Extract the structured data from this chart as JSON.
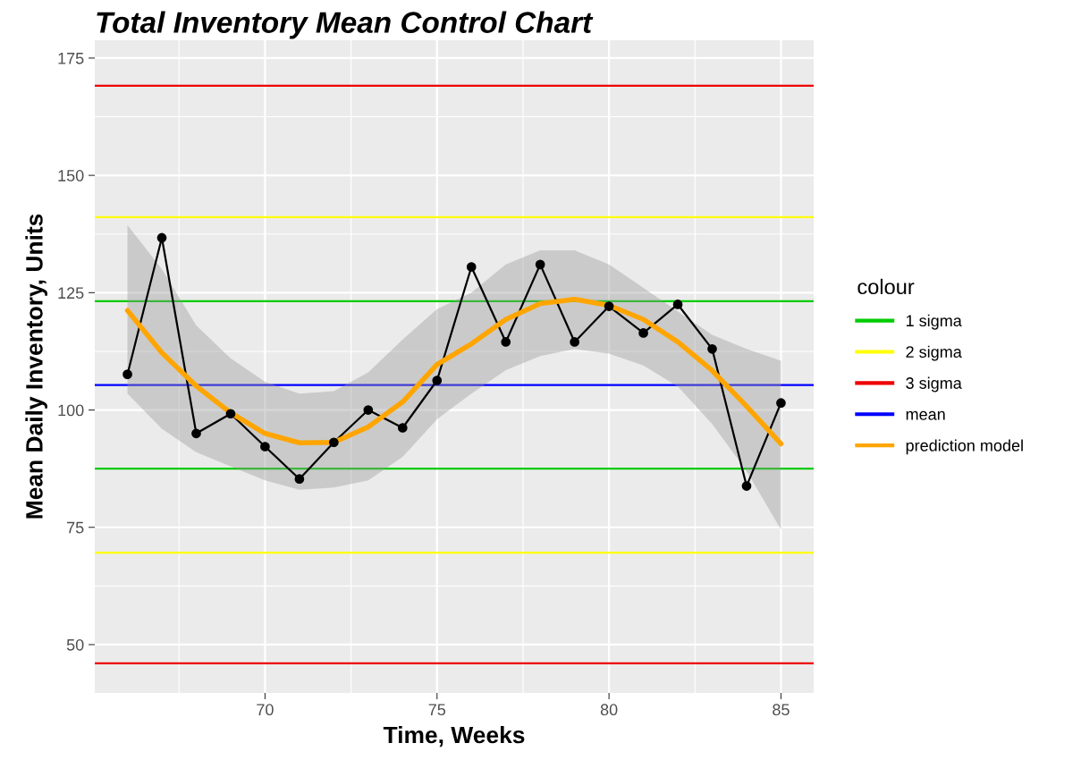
{
  "chart_data": {
    "type": "line",
    "title": "Total Inventory Mean Control Chart",
    "xlabel": "Time, Weeks",
    "ylabel": "Mean Daily Inventory, Units",
    "legend_title": "colour",
    "x": [
      66,
      67,
      68,
      69,
      70,
      71,
      72,
      73,
      74,
      75,
      76,
      77,
      78,
      79,
      80,
      81,
      82,
      83,
      84,
      85
    ],
    "series": [
      {
        "color": "#000000",
        "marker": "circle",
        "values": [
          107.6,
          136.7,
          95.0,
          99.2,
          92.2,
          85.3,
          93.1,
          100.0,
          96.2,
          106.3,
          130.5,
          114.5,
          131.0,
          114.5,
          122.1,
          116.4,
          122.5,
          113.0,
          83.8,
          101.5
        ]
      },
      {
        "name": "prediction model",
        "color": "#ffa500",
        "marker": "none",
        "values": [
          121.2,
          112.2,
          105.1,
          99.4,
          95.0,
          93.0,
          93.1,
          96.4,
          101.7,
          109.7,
          114.1,
          119.3,
          122.7,
          123.6,
          122.3,
          119.3,
          114.5,
          108.4,
          100.8,
          92.8
        ],
        "lower": [
          103.5,
          96,
          91,
          88,
          85,
          83,
          83.5,
          85,
          90,
          98,
          103.5,
          108.5,
          111.5,
          113,
          112,
          109.5,
          105,
          97,
          87,
          74.5
        ],
        "upper": [
          139.4,
          130,
          118,
          111,
          106,
          103.5,
          104,
          108,
          115,
          121.5,
          125,
          131,
          134,
          134,
          131,
          126,
          121,
          116,
          113,
          110.5
        ]
      }
    ],
    "ref_lines": [
      {
        "axis": "y",
        "value": 123.2,
        "label": "1 sigma",
        "color": "#00cc00"
      },
      {
        "axis": "y",
        "value": 141.1,
        "label": "2 sigma",
        "color": "#ffff00"
      },
      {
        "axis": "y",
        "value": 169.1,
        "label": "3 sigma",
        "color": "#ee0000"
      },
      {
        "axis": "y",
        "value": 105.3,
        "label": "mean",
        "color": "#0000ff"
      },
      {
        "axis": "y",
        "value": 87.5,
        "color": "#00cc00"
      },
      {
        "axis": "y",
        "value": 69.6,
        "color": "#ffff00"
      },
      {
        "axis": "y",
        "value": 46.0,
        "color": "#ee0000"
      }
    ],
    "xlim": [
      65.05,
      85.95
    ],
    "ylim": [
      39.7,
      178.8
    ],
    "xticks": [
      70,
      75,
      80,
      85
    ],
    "yticks": [
      50,
      75,
      100,
      125,
      150,
      175
    ],
    "grid": true,
    "legend": "right",
    "line_style": "solid"
  }
}
